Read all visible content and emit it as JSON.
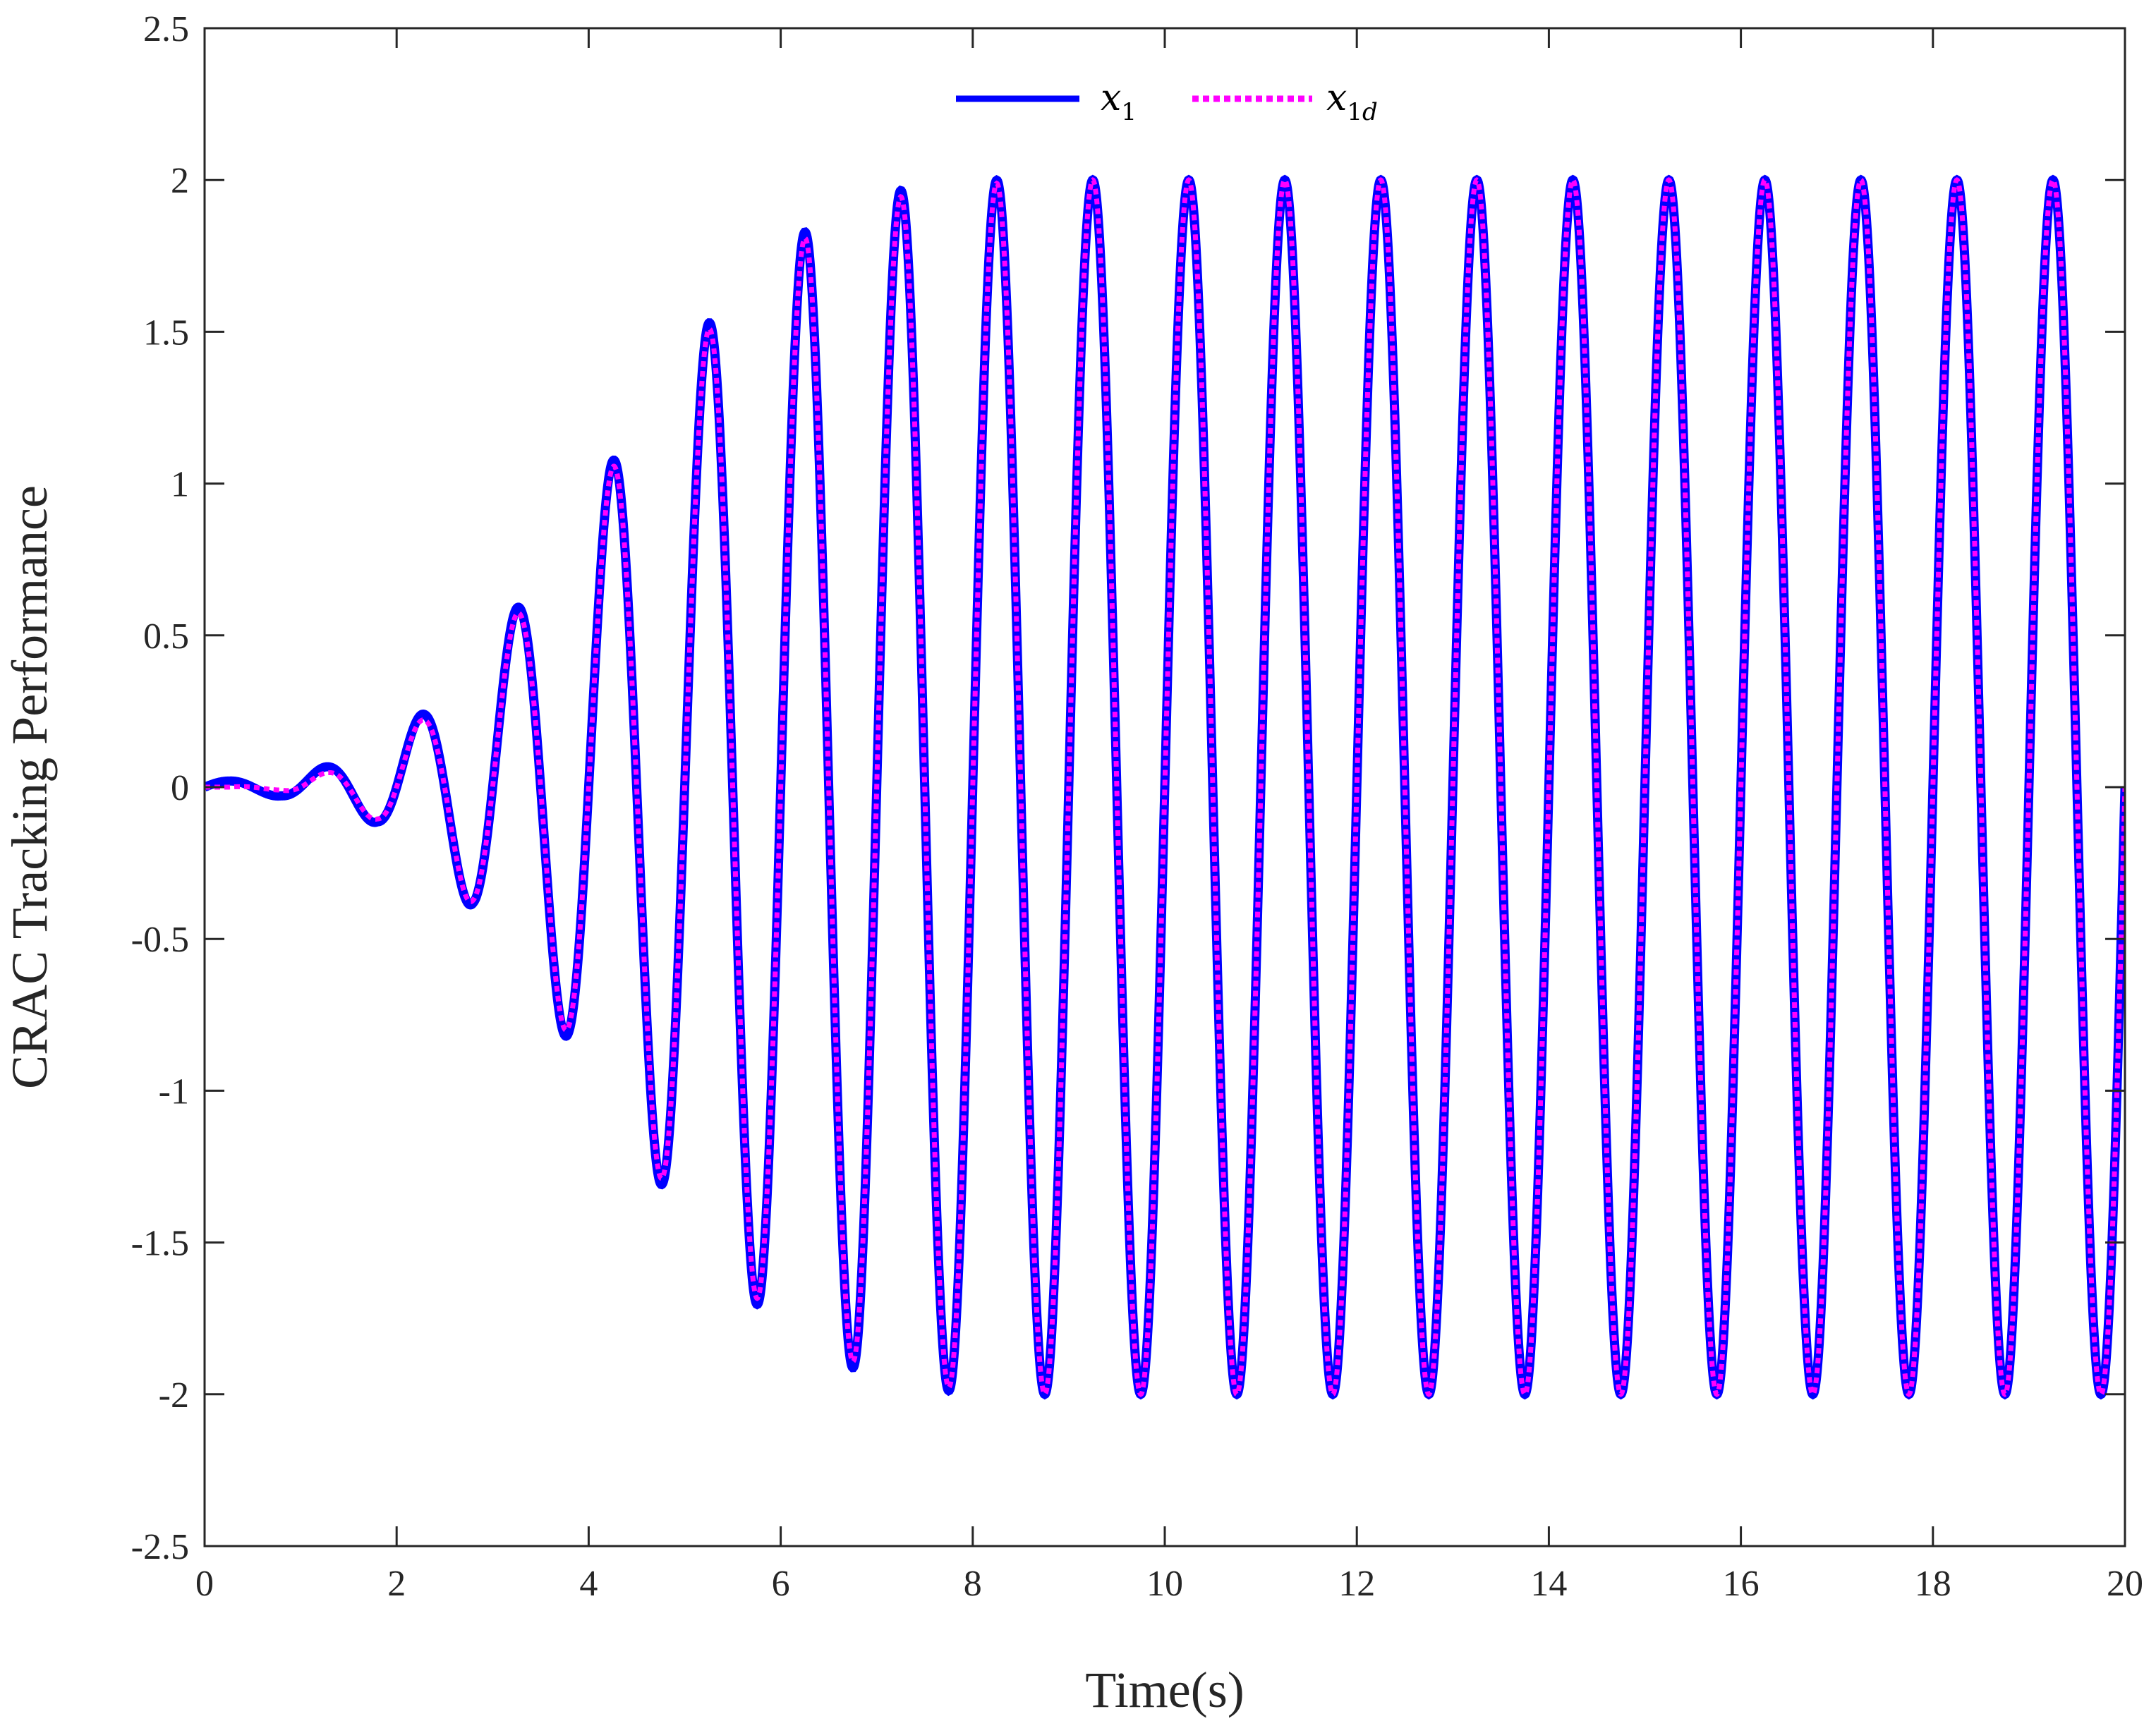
{
  "chart_data": {
    "type": "line",
    "title": "",
    "xlabel": "Time(s)",
    "ylabel": "CRAC Tracking Performance",
    "xlim": [
      0,
      20
    ],
    "ylim": [
      -2.5,
      2.5
    ],
    "xticks": [
      "0",
      "2",
      "4",
      "6",
      "8",
      "10",
      "12",
      "14",
      "16",
      "18",
      "20"
    ],
    "yticks": [
      "2.5",
      "2",
      "1.5",
      "1",
      "0.5",
      "0",
      "-0.5",
      "-1",
      "-1.5",
      "-2",
      "-2.5"
    ],
    "grid": false,
    "legend_position": "top-center",
    "signal_description": "x_1d(t) = A(t)*sin(2*pi*t), amplitude ramps up and saturates at 2",
    "series": [
      {
        "name": "x1",
        "legend_main": "x",
        "legend_sub": "1",
        "color": "#0000ff",
        "style": "solid",
        "peaks": [
          {
            "x": 0.25,
            "y": 0.02
          },
          {
            "x": 0.8,
            "y": -0.03
          },
          {
            "x": 1.3,
            "y": 0.07
          },
          {
            "x": 1.8,
            "y": -0.12
          },
          {
            "x": 2.3,
            "y": 0.25
          },
          {
            "x": 2.8,
            "y": -0.4
          },
          {
            "x": 3.3,
            "y": 0.61
          },
          {
            "x": 3.8,
            "y": -0.84
          },
          {
            "x": 4.3,
            "y": 1.1
          },
          {
            "x": 4.8,
            "y": -1.33
          },
          {
            "x": 5.3,
            "y": 1.55
          },
          {
            "x": 5.8,
            "y": -1.72
          },
          {
            "x": 6.3,
            "y": 1.84
          },
          {
            "x": 6.8,
            "y": -1.92
          },
          {
            "x": 7.3,
            "y": 1.97
          },
          {
            "x": 7.8,
            "y": -1.99
          },
          {
            "x": 8.3,
            "y": 2.0
          },
          {
            "x": 8.8,
            "y": -2.0
          },
          {
            "x": 19.3,
            "y": 2.0
          },
          {
            "x": 19.8,
            "y": -2.0
          }
        ]
      },
      {
        "name": "x1d",
        "legend_main": "x",
        "legend_sub": "1",
        "legend_sub_italic": "d",
        "color": "#ff00ff",
        "style": "dotted",
        "peaks": [
          {
            "x": 0.25,
            "y": 0.0
          },
          {
            "x": 0.8,
            "y": -0.01
          },
          {
            "x": 1.3,
            "y": 0.05
          },
          {
            "x": 1.8,
            "y": -0.11
          },
          {
            "x": 2.3,
            "y": 0.23
          },
          {
            "x": 2.8,
            "y": -0.39
          },
          {
            "x": 3.3,
            "y": 0.59
          },
          {
            "x": 3.8,
            "y": -0.82
          },
          {
            "x": 4.3,
            "y": 1.08
          },
          {
            "x": 4.8,
            "y": -1.31
          },
          {
            "x": 5.3,
            "y": 1.53
          },
          {
            "x": 5.8,
            "y": -1.7
          },
          {
            "x": 6.3,
            "y": 1.82
          },
          {
            "x": 6.8,
            "y": -1.9
          },
          {
            "x": 7.3,
            "y": 1.95
          },
          {
            "x": 7.8,
            "y": -1.98
          },
          {
            "x": 8.3,
            "y": 1.99
          },
          {
            "x": 8.8,
            "y": -2.0
          },
          {
            "x": 19.3,
            "y": 2.0
          },
          {
            "x": 19.8,
            "y": -2.0
          }
        ]
      }
    ]
  }
}
